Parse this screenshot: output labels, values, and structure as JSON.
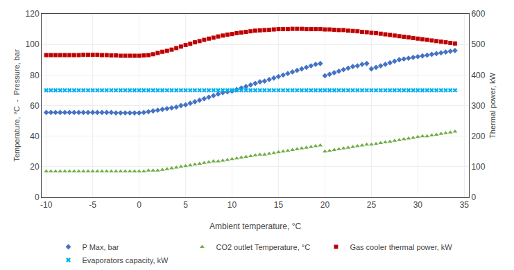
{
  "chart_data": {
    "type": "scatter",
    "xlabel": "Ambient temperature, °C",
    "ylabel": "Temperature, °C  -  Pressure, bar",
    "y2label": "Thermal power, kW",
    "x": [
      -10,
      -9.5,
      -9,
      -8.5,
      -8,
      -7.5,
      -7,
      -6.5,
      -6,
      -5.5,
      -5,
      -4.5,
      -4,
      -3.5,
      -3,
      -2.5,
      -2,
      -1.5,
      -1,
      -0.5,
      0,
      0.5,
      1,
      1.5,
      2,
      2.5,
      3,
      3.5,
      4,
      4.5,
      5,
      5.5,
      6,
      6.5,
      7,
      7.5,
      8,
      8.5,
      9,
      9.5,
      10,
      10.5,
      11,
      11.5,
      12,
      12.5,
      13,
      13.5,
      14,
      14.5,
      15,
      15.5,
      16,
      16.5,
      17,
      17.5,
      18,
      18.5,
      19,
      19.5,
      20,
      20.5,
      21,
      21.5,
      22,
      22.5,
      23,
      23.5,
      24,
      24.5,
      25,
      25.5,
      26,
      26.5,
      27,
      27.5,
      28,
      28.5,
      29,
      29.5,
      30,
      30.5,
      31,
      31.5,
      32,
      32.5,
      33,
      33.5,
      34
    ],
    "series": [
      {
        "name": "P Max, bar",
        "color": "#4472C4",
        "marker": "diamond",
        "axis": "y",
        "values": [
          55.5,
          55.5,
          55.5,
          55.5,
          55.5,
          55.5,
          55.5,
          55.5,
          55.5,
          55.5,
          55.5,
          55.5,
          55.5,
          55.5,
          55.5,
          55.2,
          55.2,
          55.2,
          55.2,
          55.2,
          55.2,
          55.5,
          56.0,
          56.5,
          57.0,
          57.5,
          58.0,
          58.5,
          59.0,
          60.0,
          60.5,
          61.5,
          62.5,
          63.5,
          64.5,
          65.5,
          66.5,
          67.5,
          68.5,
          69.0,
          69.5,
          70.5,
          71.5,
          72.5,
          73.5,
          74.5,
          75.5,
          76.0,
          77.0,
          78.0,
          79.0,
          80.0,
          81.0,
          82.0,
          83.0,
          84.0,
          85.0,
          86.0,
          87.0,
          87.5,
          79.5,
          80.5,
          81.5,
          82.5,
          83.5,
          84.5,
          85.5,
          86.0,
          87.0,
          87.5,
          84.0,
          85.0,
          86.0,
          87.0,
          88.0,
          89.0,
          90.0,
          90.5,
          91.0,
          91.5,
          92.0,
          92.5,
          93.0,
          93.5,
          94.0,
          94.5,
          95.0,
          95.5,
          96.0
        ]
      },
      {
        "name": "CO2 outlet Temperature, °C",
        "color": "#70AD47",
        "marker": "triangle-up",
        "axis": "y",
        "values": [
          17.0,
          17.0,
          17.0,
          17.0,
          17.0,
          17.0,
          17.0,
          17.0,
          17.0,
          17.0,
          17.0,
          17.0,
          17.0,
          17.0,
          17.0,
          17.0,
          17.0,
          17.0,
          17.0,
          17.0,
          17.0,
          17.0,
          17.5,
          17.5,
          17.5,
          18.0,
          18.5,
          19.0,
          19.5,
          20.0,
          20.5,
          21.0,
          21.5,
          22.0,
          22.5,
          23.0,
          23.5,
          23.5,
          24.0,
          24.5,
          25.0,
          25.5,
          26.0,
          26.5,
          27.0,
          27.5,
          28.0,
          28.0,
          28.5,
          29.0,
          29.5,
          30.0,
          30.5,
          31.0,
          31.5,
          32.0,
          32.5,
          33.0,
          33.5,
          34.0,
          30.0,
          30.5,
          31.0,
          31.5,
          32.0,
          32.5,
          33.0,
          33.5,
          34.0,
          34.5,
          34.5,
          35.0,
          35.5,
          36.0,
          36.5,
          37.0,
          37.5,
          38.0,
          38.5,
          39.0,
          39.5,
          40.0,
          40.0,
          40.5,
          41.0,
          41.5,
          42.0,
          42.5,
          43.0
        ]
      },
      {
        "name": "Gas cooler thermal power, kW",
        "color": "#C00000",
        "marker": "square",
        "axis": "y2",
        "values": [
          465,
          465,
          465,
          465,
          465,
          465,
          465,
          465,
          466,
          466,
          466,
          466,
          465,
          465,
          464,
          464,
          463,
          463,
          463,
          463,
          463,
          464,
          465,
          468,
          472,
          476,
          479,
          483,
          488,
          493,
          498,
          502,
          507,
          511,
          515,
          519,
          522,
          526,
          529,
          532,
          534,
          537,
          539,
          541,
          543,
          545,
          546,
          547,
          548,
          549,
          550,
          550,
          550,
          551,
          551,
          551,
          550,
          550,
          550,
          550,
          549,
          549,
          548,
          547,
          547,
          545,
          544,
          543,
          541,
          540,
          538,
          537,
          535,
          533,
          531,
          529,
          527,
          525,
          523,
          521,
          519,
          517,
          515,
          513,
          511,
          509,
          507,
          505,
          503
        ]
      },
      {
        "name": "Evaporators capacity, kW",
        "color": "#00B0F0",
        "marker": "x",
        "axis": "y2",
        "values": [
          350,
          350,
          350,
          350,
          350,
          350,
          350,
          350,
          350,
          350,
          350,
          350,
          350,
          350,
          350,
          350,
          350,
          350,
          350,
          350,
          350,
          350,
          350,
          350,
          350,
          350,
          350,
          350,
          350,
          350,
          350,
          350,
          350,
          350,
          350,
          350,
          350,
          350,
          350,
          350,
          350,
          350,
          350,
          350,
          350,
          350,
          350,
          350,
          350,
          350,
          350,
          350,
          350,
          350,
          350,
          350,
          350,
          350,
          350,
          350,
          350,
          350,
          350,
          350,
          350,
          350,
          350,
          350,
          350,
          350,
          350,
          350,
          350,
          350,
          350,
          350,
          350,
          350,
          350,
          350,
          350,
          350,
          350,
          350,
          350,
          350,
          350,
          350,
          350
        ]
      }
    ],
    "xlim": [
      -10.5,
      35.5
    ],
    "xticks": [
      -10,
      -5,
      0,
      5,
      10,
      15,
      20,
      25,
      30,
      35
    ],
    "ylim": [
      0,
      120
    ],
    "yticks": [
      0,
      20,
      40,
      60,
      80,
      100,
      120
    ],
    "y2lim": [
      0,
      600
    ],
    "y2ticks": [
      0,
      100,
      200,
      300,
      400,
      500,
      600
    ],
    "grid": true,
    "legend": "bottom"
  }
}
